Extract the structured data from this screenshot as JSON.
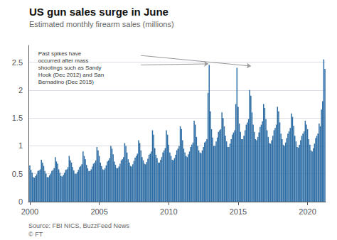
{
  "chart_data": {
    "type": "bar",
    "title": "US gun sales surge in June",
    "subtitle": "Estimated monthly firearm sales (millions)",
    "source_lines": [
      "Source: FBI NICS, BuzzFeed News",
      "© FT"
    ],
    "annotation": "Past spikes have\noccurred after mass\nshootings such as Sandy\nHook (Dec 2012) and San\nBernadino (Dec 2015)",
    "color": "#2e6da4",
    "grid": true,
    "xlim": [
      1999.9,
      2021.3
    ],
    "xticks": [
      2000,
      2005,
      2010,
      2015,
      2020
    ],
    "ylim": [
      0,
      2.8
    ],
    "yticks": [
      0,
      0.5,
      1,
      1.5,
      2,
      2.5
    ],
    "x": [
      2000,
      2000.083333,
      2000.166667,
      2000.25,
      2000.333333,
      2000.416667,
      2000.5,
      2000.583333,
      2000.666667,
      2000.75,
      2000.833333,
      2000.916667,
      2001,
      2001.083333,
      2001.166667,
      2001.25,
      2001.333333,
      2001.416667,
      2001.5,
      2001.583333,
      2001.666667,
      2001.75,
      2001.833333,
      2001.916667,
      2002,
      2002.083333,
      2002.166667,
      2002.25,
      2002.333333,
      2002.416667,
      2002.5,
      2002.583333,
      2002.666667,
      2002.75,
      2002.833333,
      2002.916667,
      2003,
      2003.083333,
      2003.166667,
      2003.25,
      2003.333333,
      2003.416667,
      2003.5,
      2003.583333,
      2003.666667,
      2003.75,
      2003.833333,
      2003.916667,
      2004,
      2004.083333,
      2004.166667,
      2004.25,
      2004.333333,
      2004.416667,
      2004.5,
      2004.583333,
      2004.666667,
      2004.75,
      2004.833333,
      2004.916667,
      2005,
      2005.083333,
      2005.166667,
      2005.25,
      2005.333333,
      2005.416667,
      2005.5,
      2005.583333,
      2005.666667,
      2005.75,
      2005.833333,
      2005.916667,
      2006,
      2006.083333,
      2006.166667,
      2006.25,
      2006.333333,
      2006.416667,
      2006.5,
      2006.583333,
      2006.666667,
      2006.75,
      2006.833333,
      2006.916667,
      2007,
      2007.083333,
      2007.166667,
      2007.25,
      2007.333333,
      2007.416667,
      2007.5,
      2007.583333,
      2007.666667,
      2007.75,
      2007.833333,
      2007.916667,
      2008,
      2008.083333,
      2008.166667,
      2008.25,
      2008.333333,
      2008.416667,
      2008.5,
      2008.583333,
      2008.666667,
      2008.75,
      2008.833333,
      2008.916667,
      2009,
      2009.083333,
      2009.166667,
      2009.25,
      2009.333333,
      2009.416667,
      2009.5,
      2009.583333,
      2009.666667,
      2009.75,
      2009.833333,
      2009.916667,
      2010,
      2010.083333,
      2010.166667,
      2010.25,
      2010.333333,
      2010.416667,
      2010.5,
      2010.583333,
      2010.666667,
      2010.75,
      2010.833333,
      2010.916667,
      2011,
      2011.083333,
      2011.166667,
      2011.25,
      2011.333333,
      2011.416667,
      2011.5,
      2011.583333,
      2011.666667,
      2011.75,
      2011.833333,
      2011.916667,
      2012,
      2012.083333,
      2012.166667,
      2012.25,
      2012.333333,
      2012.416667,
      2012.5,
      2012.583333,
      2012.666667,
      2012.75,
      2012.833333,
      2012.916667,
      2013,
      2013.083333,
      2013.166667,
      2013.25,
      2013.333333,
      2013.416667,
      2013.5,
      2013.583333,
      2013.666667,
      2013.75,
      2013.833333,
      2013.916667,
      2014,
      2014.083333,
      2014.166667,
      2014.25,
      2014.333333,
      2014.416667,
      2014.5,
      2014.583333,
      2014.666667,
      2014.75,
      2014.833333,
      2014.916667,
      2015,
      2015.083333,
      2015.166667,
      2015.25,
      2015.333333,
      2015.416667,
      2015.5,
      2015.583333,
      2015.666667,
      2015.75,
      2015.833333,
      2015.916667,
      2016,
      2016.083333,
      2016.166667,
      2016.25,
      2016.333333,
      2016.416667,
      2016.5,
      2016.583333,
      2016.666667,
      2016.75,
      2016.833333,
      2016.916667,
      2017,
      2017.083333,
      2017.166667,
      2017.25,
      2017.333333,
      2017.416667,
      2017.5,
      2017.583333,
      2017.666667,
      2017.75,
      2017.833333,
      2017.916667,
      2018,
      2018.083333,
      2018.166667,
      2018.25,
      2018.333333,
      2018.416667,
      2018.5,
      2018.583333,
      2018.666667,
      2018.75,
      2018.833333,
      2018.916667,
      2019,
      2019.083333,
      2019.166667,
      2019.25,
      2019.333333,
      2019.416667,
      2019.5,
      2019.583333,
      2019.666667,
      2019.75,
      2019.833333,
      2019.916667,
      2020,
      2020.083333,
      2020.166667,
      2020.25,
      2020.333333,
      2020.416667,
      2020.5,
      2020.583333,
      2020.666667,
      2020.75,
      2020.833333,
      2020.916667,
      2021,
      2021.083333,
      2021.166667,
      2021.25
    ],
    "values": [
      0.65,
      0.57,
      0.52,
      0.44,
      0.43,
      0.46,
      0.49,
      0.55,
      0.56,
      0.58,
      0.75,
      0.7,
      0.64,
      0.55,
      0.5,
      0.44,
      0.44,
      0.47,
      0.5,
      0.55,
      0.57,
      0.6,
      0.8,
      0.72,
      0.68,
      0.58,
      0.52,
      0.46,
      0.45,
      0.48,
      0.52,
      0.57,
      0.58,
      0.62,
      0.82,
      0.74,
      0.7,
      0.62,
      0.56,
      0.5,
      0.5,
      0.53,
      0.57,
      0.62,
      0.64,
      0.67,
      0.9,
      0.82,
      0.76,
      0.66,
      0.6,
      0.55,
      0.55,
      0.58,
      0.63,
      0.68,
      0.7,
      0.74,
      0.98,
      0.92,
      0.82,
      0.7,
      0.64,
      0.58,
      0.57,
      0.6,
      0.65,
      0.72,
      0.74,
      0.78,
      1.0,
      0.95,
      0.85,
      0.72,
      0.66,
      0.6,
      0.6,
      0.63,
      0.68,
      0.74,
      0.76,
      0.8,
      1.05,
      1.0,
      0.88,
      0.76,
      0.7,
      0.64,
      0.63,
      0.67,
      0.73,
      0.79,
      0.82,
      0.86,
      1.1,
      1.05,
      0.92,
      0.8,
      0.74,
      0.68,
      0.67,
      0.71,
      0.77,
      0.84,
      0.86,
      0.9,
      1.28,
      1.2,
      0.96,
      0.84,
      0.78,
      0.7,
      0.7,
      0.75,
      0.8,
      0.88,
      0.92,
      0.96,
      1.28,
      1.2,
      1.02,
      0.88,
      0.82,
      0.75,
      0.74,
      0.78,
      0.84,
      0.92,
      0.95,
      1.0,
      1.35,
      1.3,
      1.1,
      0.95,
      0.88,
      0.82,
      0.8,
      0.85,
      0.9,
      0.98,
      1.02,
      1.06,
      1.45,
      1.38,
      1.16,
      1.0,
      0.92,
      0.88,
      0.87,
      0.92,
      0.98,
      1.06,
      1.08,
      1.12,
      1.95,
      2.45,
      1.62,
      1.3,
      1.15,
      1.0,
      1.0,
      1.08,
      1.15,
      1.25,
      1.28,
      1.3,
      1.6,
      1.5,
      1.35,
      1.18,
      1.08,
      0.98,
      0.98,
      1.04,
      1.12,
      1.2,
      1.24,
      1.28,
      1.75,
      2.4,
      1.7,
      1.4,
      1.25,
      1.12,
      1.12,
      1.18,
      1.28,
      1.38,
      1.42,
      1.48,
      2.0,
      1.9,
      1.6,
      1.38,
      1.25,
      1.12,
      1.1,
      1.16,
      1.24,
      1.34,
      1.38,
      1.44,
      1.75,
      1.68,
      1.48,
      1.28,
      1.16,
      1.05,
      1.04,
      1.1,
      1.18,
      1.28,
      1.32,
      1.38,
      1.7,
      1.62,
      1.42,
      1.22,
      1.12,
      1.02,
      1.0,
      1.06,
      1.14,
      1.22,
      1.26,
      1.32,
      1.58,
      1.52,
      1.36,
      1.18,
      1.08,
      0.98,
      0.97,
      1.02,
      1.1,
      1.18,
      1.22,
      1.26,
      1.45,
      1.38,
      1.3,
      1.12,
      1.02,
      0.92,
      0.9,
      0.96,
      1.04,
      1.14,
      1.18,
      1.22,
      1.4,
      1.35,
      1.65,
      1.8,
      2.55,
      2.38
    ]
  }
}
